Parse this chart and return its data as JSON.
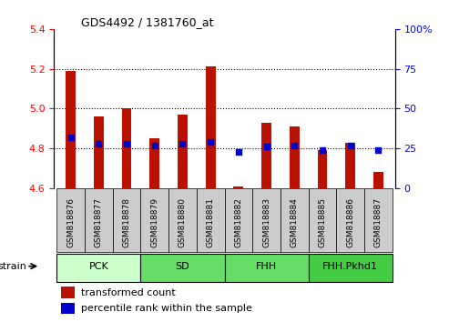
{
  "title": "GDS4492 / 1381760_at",
  "samples": [
    "GSM818876",
    "GSM818877",
    "GSM818878",
    "GSM818879",
    "GSM818880",
    "GSM818881",
    "GSM818882",
    "GSM818883",
    "GSM818884",
    "GSM818885",
    "GSM818886",
    "GSM818887"
  ],
  "groups": [
    {
      "name": "PCK",
      "start": 0,
      "end": 2,
      "color": "#ccffcc"
    },
    {
      "name": "SD",
      "start": 3,
      "end": 5,
      "color": "#66dd66"
    },
    {
      "name": "FHH",
      "start": 6,
      "end": 8,
      "color": "#66dd66"
    },
    {
      "name": "FHH.Pkhd1",
      "start": 9,
      "end": 11,
      "color": "#44cc44"
    }
  ],
  "transformed_count": [
    5.19,
    4.96,
    5.0,
    4.85,
    4.97,
    5.21,
    4.61,
    4.93,
    4.91,
    4.79,
    4.83,
    4.68
  ],
  "percentile_rank": [
    32,
    28,
    28,
    27,
    28,
    29,
    23,
    26,
    27,
    24,
    27,
    24
  ],
  "ylim_left": [
    4.6,
    5.4
  ],
  "ylim_right": [
    0,
    100
  ],
  "yticks_left": [
    4.6,
    4.8,
    5.0,
    5.2,
    5.4
  ],
  "yticks_right": [
    0,
    25,
    50,
    75,
    100
  ],
  "bar_color": "#bb1100",
  "dot_color": "#0000cc",
  "bar_bottom": 4.6,
  "bg_tick": "#cccccc",
  "legend_red": "transformed count",
  "legend_blue": "percentile rank within the sample",
  "strain_label": "strain"
}
